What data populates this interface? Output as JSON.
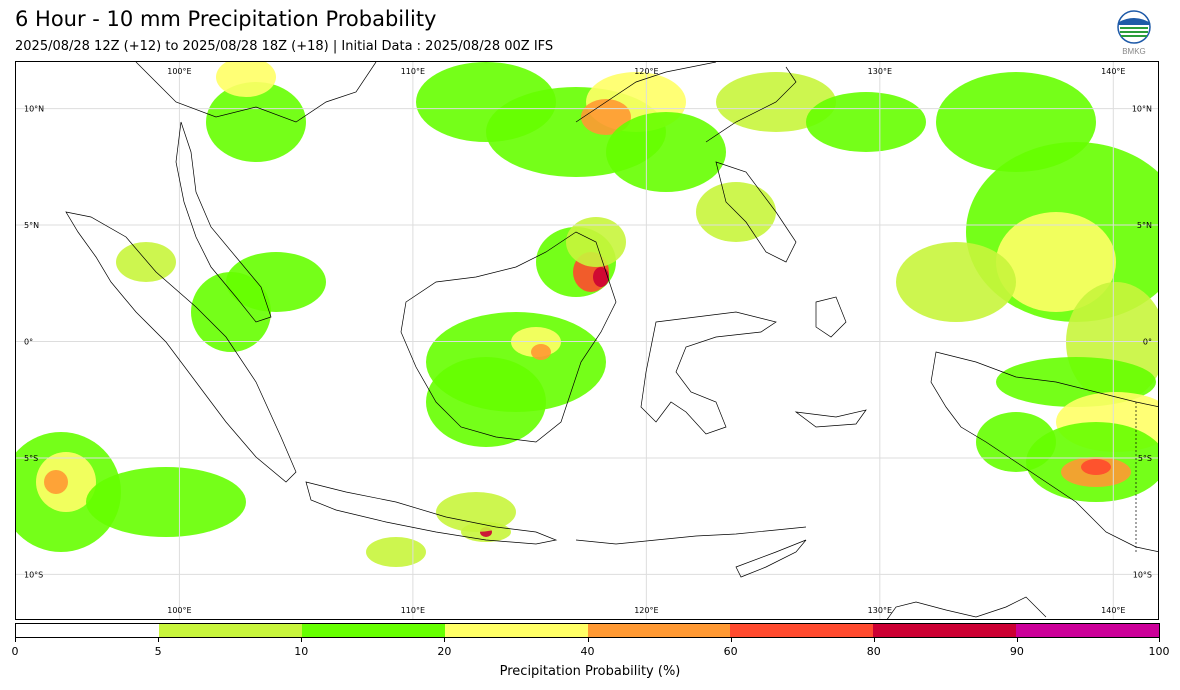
{
  "header": {
    "title": "6 Hour - 10 mm Precipitation Probability",
    "subtitle": "2025/08/28 12Z (+12) to 2025/08/28 18Z (+18) | Initial Data : 2025/08/28 00Z IFS",
    "logo_text": "BMKG"
  },
  "map": {
    "lon_range": [
      93,
      142
    ],
    "lat_range": [
      -12,
      12
    ],
    "lon_ticks": [
      {
        "value": 100,
        "label": "100°E"
      },
      {
        "value": 110,
        "label": "110°E"
      },
      {
        "value": 120,
        "label": "120°E"
      },
      {
        "value": 130,
        "label": "130°E"
      },
      {
        "value": 140,
        "label": "140°E"
      }
    ],
    "lat_ticks": [
      {
        "value": 10,
        "label": "10°N"
      },
      {
        "value": 5,
        "label": "5°N"
      },
      {
        "value": 0,
        "label": "0°"
      },
      {
        "value": -5,
        "label": "5°S"
      },
      {
        "value": -10,
        "label": "10°S"
      }
    ],
    "grid": true
  },
  "colorbar": {
    "label": "Precipitation Probability (%)",
    "ticks": [
      "0",
      "5",
      "10",
      "20",
      "40",
      "60",
      "80",
      "90",
      "100"
    ],
    "colors": [
      "#ffffff",
      "#c8f53c",
      "#66ff00",
      "#ffff66",
      "#ff9933",
      "#ff4a2e",
      "#cc0033",
      "#cc0099"
    ]
  },
  "colors": {
    "land_outline": "#000000",
    "grid": "#dddddd"
  }
}
